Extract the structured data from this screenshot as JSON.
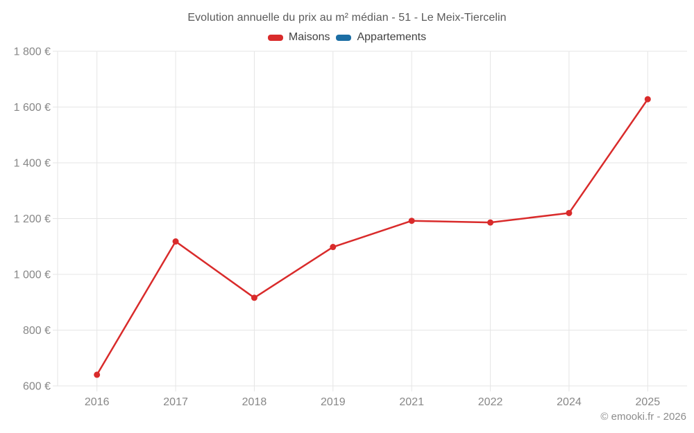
{
  "chart": {
    "title": "Evolution annuelle du prix au m² médian - 51 - Le Meix-Tiercelin",
    "legend": [
      {
        "label": "Maisons",
        "color": "#d92b2b"
      },
      {
        "label": "Appartements",
        "color": "#1c6ea4"
      }
    ]
  },
  "chart_data": {
    "type": "line",
    "title": "Evolution annuelle du prix au m² médian - 51 - Le Meix-Tiercelin",
    "categories": [
      "2016",
      "2017",
      "2018",
      "2019",
      "2021",
      "2022",
      "2024",
      "2025"
    ],
    "series": [
      {
        "name": "Maisons",
        "color": "#d92b2b",
        "values": [
          640,
          1118,
          916,
          1098,
          1192,
          1186,
          1220,
          1628
        ]
      },
      {
        "name": "Appartements",
        "color": "#1c6ea4",
        "values": []
      }
    ],
    "ylim": [
      600,
      1800
    ],
    "yticks": [
      600,
      800,
      1000,
      1200,
      1400,
      1600,
      1800
    ],
    "ytick_labels": [
      "600 €",
      "800 €",
      "1 000 €",
      "1 200 €",
      "1 400 €",
      "1 600 €",
      "1 800 €"
    ],
    "xlabel": "",
    "ylabel": "",
    "grid": true,
    "legend_position": "top-center",
    "currency": "€"
  },
  "footer": {
    "copyright": "© emooki.fr - 2026"
  },
  "colors": {
    "maisons": "#d92b2b",
    "appartements": "#1c6ea4",
    "grid": "#e5e5e5",
    "title_text": "#5a5a5a",
    "legend_text": "#414141",
    "tick_text": "#878787",
    "footer_text": "#8c8c8c",
    "background": "#ffffff"
  }
}
